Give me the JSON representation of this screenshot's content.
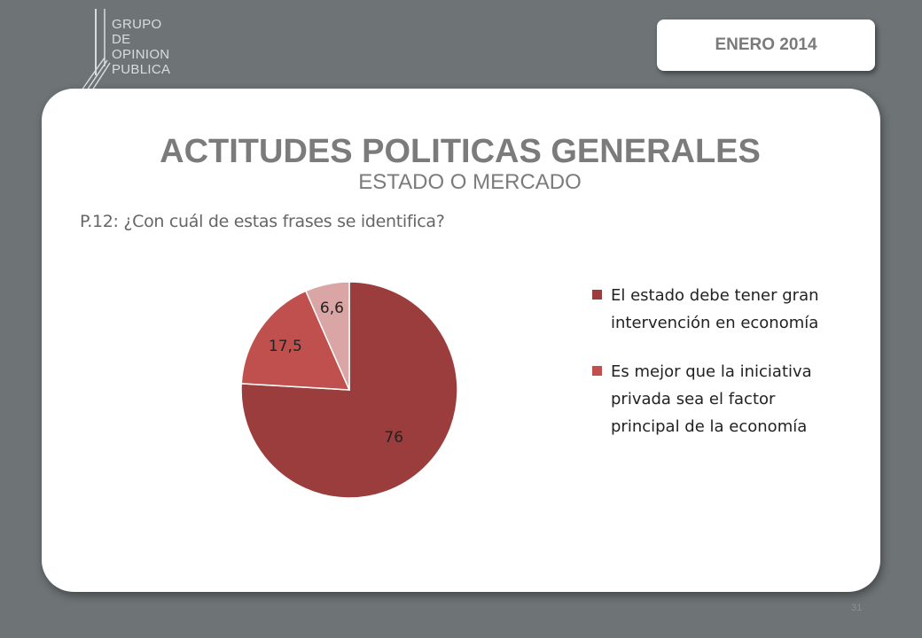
{
  "logo": {
    "lines": [
      "GRUPO",
      "DE",
      "OPINION",
      "PUBLICA"
    ]
  },
  "date_badge": "ENERO 2014",
  "title": "ACTITUDES POLITICAS GENERALES",
  "subtitle": "ESTADO O MERCADO",
  "question": "P.12: ¿Con cuál de estas frases se identifica?",
  "page_number": "31",
  "chart_data": {
    "type": "pie",
    "slices": [
      {
        "label": "El estado debe tener gran intervención en economía",
        "value": 76,
        "display": "76",
        "color": "#9b3d3d"
      },
      {
        "label": "Es mejor que la iniciativa privada sea el factor principal de la economía",
        "value": 17.5,
        "display": "17,5",
        "color": "#c0504d"
      },
      {
        "label": "",
        "value": 6.6,
        "display": "6,6",
        "color": "#d9a5a5"
      }
    ],
    "legend": [
      {
        "label": "El estado debe tener gran intervención en economía",
        "color": "#9b3d3d"
      },
      {
        "label": "Es mejor que la iniciativa privada sea el factor principal de la economía",
        "color": "#c0504d"
      }
    ],
    "legend_position": "right"
  }
}
